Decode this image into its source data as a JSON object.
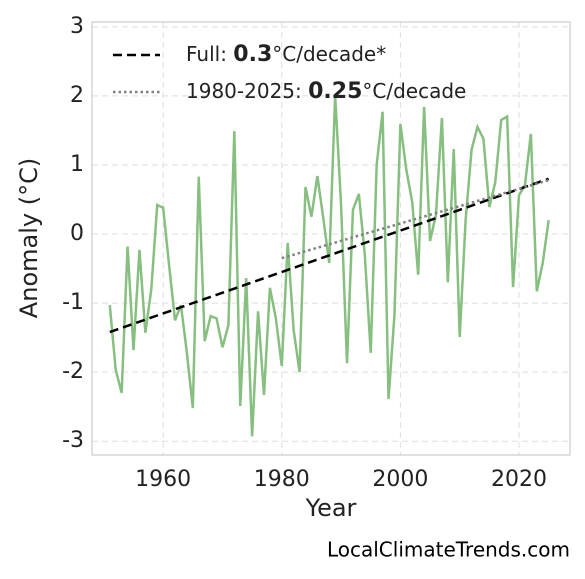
{
  "chart_data": {
    "type": "line",
    "xlabel": "Year",
    "ylabel": "Anomaly (°C)",
    "source": "LocalClimateTrends.com",
    "xlim": [
      1948,
      2028.6
    ],
    "ylim": [
      -3.2,
      3.07
    ],
    "xticks": [
      1960,
      1980,
      2000,
      2020
    ],
    "yticks": [
      -3,
      -2,
      -1,
      0,
      1,
      2,
      3
    ],
    "grid": true,
    "legend": "upper left",
    "series": [
      {
        "color": "#86bf7f",
        "style": "solid",
        "x": [
          1951,
          1952,
          1953,
          1954,
          1955,
          1956,
          1957,
          1958,
          1959,
          1960,
          1961,
          1962,
          1963,
          1964,
          1965,
          1966,
          1967,
          1968,
          1969,
          1970,
          1971,
          1972,
          1973,
          1974,
          1975,
          1976,
          1977,
          1978,
          1979,
          1980,
          1981,
          1982,
          1983,
          1984,
          1985,
          1986,
          1987,
          1988,
          1989,
          1990,
          1991,
          1992,
          1993,
          1994,
          1995,
          1996,
          1997,
          1998,
          1999,
          2000,
          2001,
          2002,
          2003,
          2004,
          2005,
          2006,
          2007,
          2008,
          2009,
          2010,
          2011,
          2012,
          2013,
          2014,
          2015,
          2016,
          2017,
          2018,
          2019,
          2020,
          2021,
          2022,
          2023,
          2024,
          2025
        ],
        "values": [
          -1.03,
          -1.97,
          -2.3,
          -0.18,
          -1.68,
          -0.23,
          -1.43,
          -0.8,
          0.42,
          0.38,
          -0.45,
          -1.25,
          -1.03,
          -1.72,
          -2.52,
          0.83,
          -1.55,
          -1.19,
          -1.22,
          -1.64,
          -1.32,
          1.49,
          -2.49,
          -0.64,
          -2.93,
          -1.12,
          -2.33,
          -0.78,
          -1.22,
          -1.91,
          -0.13,
          -1.39,
          -2.0,
          0.68,
          0.25,
          0.84,
          0.23,
          -0.42,
          2.01,
          0.42,
          -1.87,
          0.35,
          0.58,
          -0.3,
          -1.72,
          1.0,
          1.77,
          -2.39,
          -1.17,
          1.59,
          0.93,
          0.46,
          -0.59,
          1.84,
          -0.1,
          0.28,
          1.68,
          -0.7,
          1.23,
          -1.49,
          0.2,
          1.22,
          1.55,
          1.38,
          0.39,
          0.75,
          1.65,
          1.7,
          -0.77,
          0.56,
          0.71,
          1.45,
          -0.83,
          -0.42,
          0.2
        ]
      },
      {
        "color": "#000000",
        "style": "dashed",
        "legend_parts": [
          "Full: ",
          "0.3",
          "°C/decade*"
        ],
        "x": [
          1951,
          2025
        ],
        "values": [
          -1.42,
          0.8
        ]
      },
      {
        "color": "#808080",
        "style": "dotted",
        "legend_parts": [
          "1980-2025: ",
          "0.25",
          "°C/decade"
        ],
        "x": [
          1980,
          2025
        ],
        "values": [
          -0.35,
          0.78
        ]
      }
    ]
  }
}
